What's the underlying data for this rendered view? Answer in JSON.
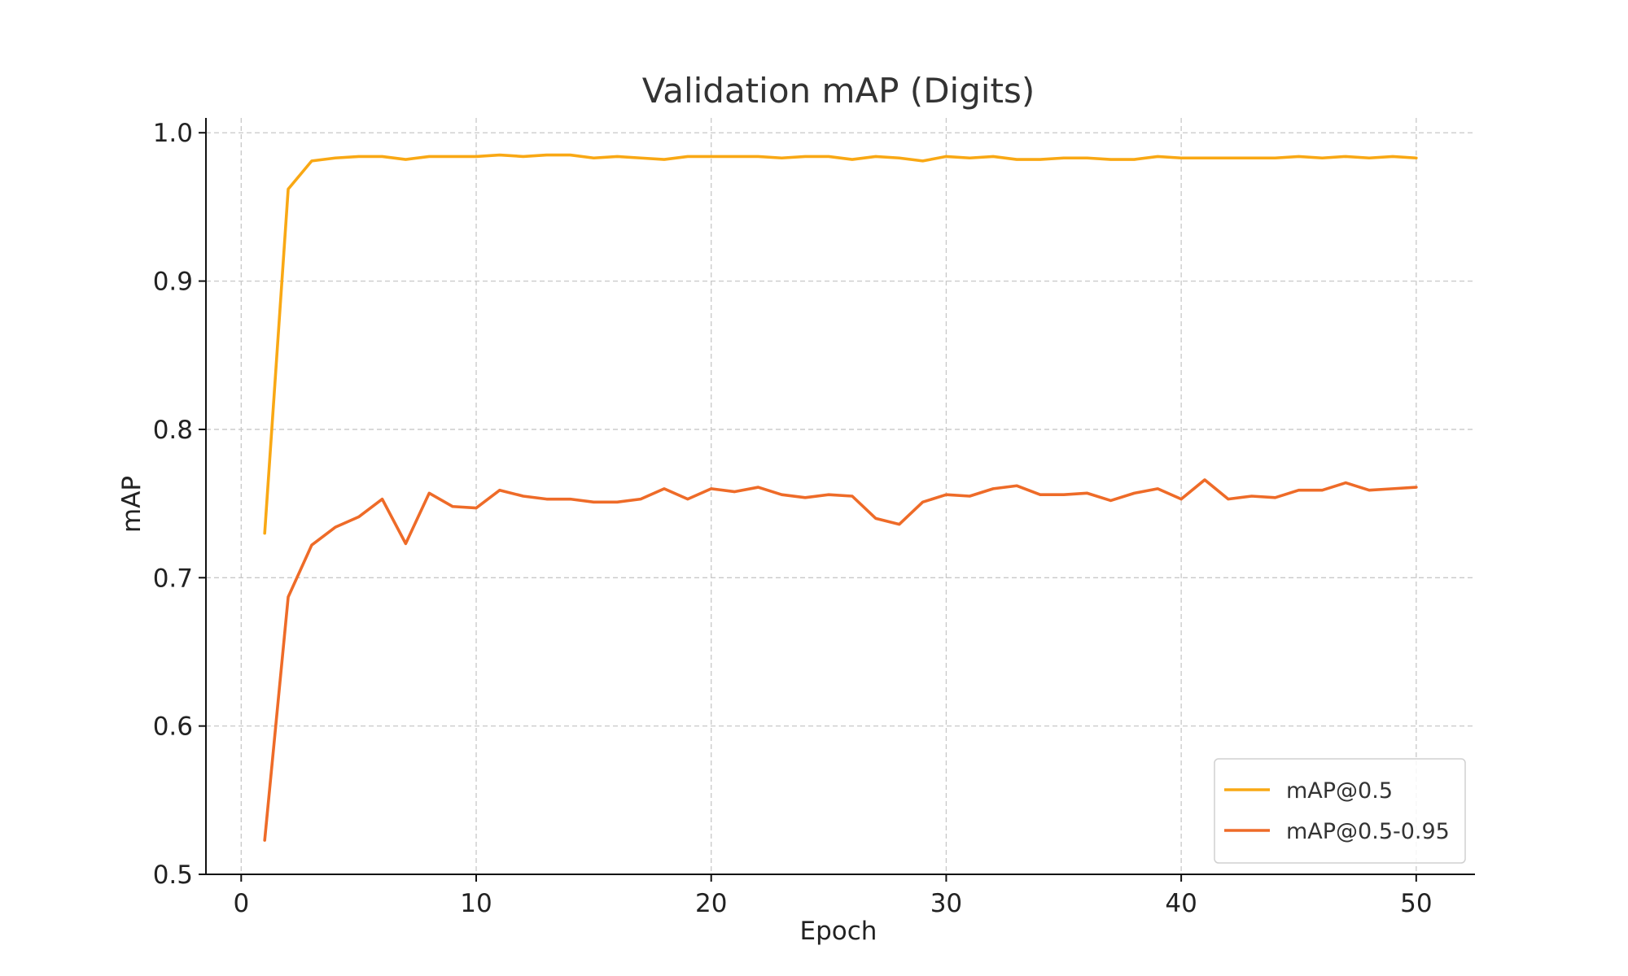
{
  "chart_data": {
    "type": "line",
    "title": "Validation mAP (Digits)",
    "xlabel": "Epoch",
    "ylabel": "mAP",
    "xlim": [
      -1.5,
      52.5
    ],
    "ylim": [
      0.5,
      1.01
    ],
    "xticks": [
      0,
      10,
      20,
      30,
      40,
      50
    ],
    "yticks": [
      0.5,
      0.6,
      0.7,
      0.8,
      0.9,
      1.0
    ],
    "xtick_labels": [
      "0",
      "10",
      "20",
      "30",
      "40",
      "50"
    ],
    "ytick_labels": [
      "0.5",
      "0.6",
      "0.7",
      "0.8",
      "0.9",
      "1.0"
    ],
    "grid": true,
    "legend_position": "lower-right",
    "x": [
      1,
      2,
      3,
      4,
      5,
      6,
      7,
      8,
      9,
      10,
      11,
      12,
      13,
      14,
      15,
      16,
      17,
      18,
      19,
      20,
      21,
      22,
      23,
      24,
      25,
      26,
      27,
      28,
      29,
      30,
      31,
      32,
      33,
      34,
      35,
      36,
      37,
      38,
      39,
      40,
      41,
      42,
      43,
      44,
      45,
      46,
      47,
      48,
      49,
      50
    ],
    "series": [
      {
        "name": "mAP@0.5",
        "color": "#f9a814",
        "values": [
          0.73,
          0.962,
          0.981,
          0.983,
          0.984,
          0.984,
          0.982,
          0.984,
          0.984,
          0.984,
          0.985,
          0.984,
          0.985,
          0.985,
          0.983,
          0.984,
          0.983,
          0.982,
          0.984,
          0.984,
          0.984,
          0.984,
          0.983,
          0.984,
          0.984,
          0.982,
          0.984,
          0.983,
          0.981,
          0.984,
          0.983,
          0.984,
          0.982,
          0.982,
          0.983,
          0.983,
          0.982,
          0.982,
          0.984,
          0.983,
          0.983,
          0.983,
          0.983,
          0.983,
          0.984,
          0.983,
          0.984,
          0.983,
          0.984,
          0.983
        ]
      },
      {
        "name": "mAP@0.5-0.95",
        "color": "#ee6b28",
        "values": [
          0.523,
          0.687,
          0.722,
          0.734,
          0.741,
          0.753,
          0.723,
          0.757,
          0.748,
          0.747,
          0.759,
          0.755,
          0.753,
          0.753,
          0.751,
          0.751,
          0.753,
          0.76,
          0.753,
          0.76,
          0.758,
          0.761,
          0.756,
          0.754,
          0.756,
          0.755,
          0.74,
          0.736,
          0.751,
          0.756,
          0.755,
          0.76,
          0.762,
          0.756,
          0.756,
          0.757,
          0.752,
          0.757,
          0.76,
          0.753,
          0.766,
          0.753,
          0.755,
          0.754,
          0.759,
          0.759,
          0.764,
          0.759,
          0.76,
          0.761
        ]
      }
    ]
  }
}
